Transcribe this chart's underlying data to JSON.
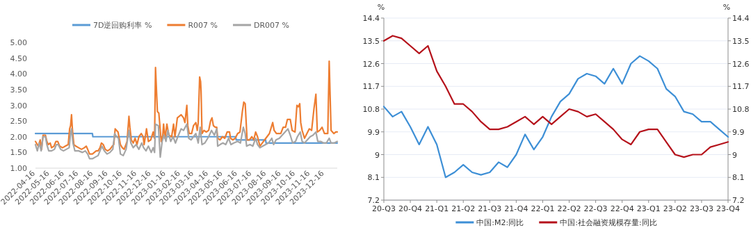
{
  "chart_data": [
    {
      "type": "line",
      "legend": "top",
      "xlim": [
        "2022-04-16",
        "2024-01-12"
      ],
      "xticks": [
        "2022-04-16",
        "2022-05-16",
        "2022-06-16",
        "2022-07-16",
        "2022-08-16",
        "2022-09-16",
        "2022-10-16",
        "2022-11-16",
        "2022-12-16",
        "2023-01-16",
        "2023-02-16",
        "2023-03-16",
        "2023-04-16",
        "2023-05-16",
        "2023-06-16",
        "2023-07-16",
        "2023-08-16",
        "2023-09-16",
        "2023-10-16",
        "2023-11-16",
        "2023-12-16"
      ],
      "ylim": [
        1,
        5
      ],
      "yticks": [
        {
          "value": 1,
          "label": "1.00"
        },
        {
          "value": 1.5,
          "label": "1.50"
        },
        {
          "value": 2,
          "label": "2.00"
        },
        {
          "value": 2.5,
          "label": "2.50"
        },
        {
          "value": 3,
          "label": "3.00"
        },
        {
          "value": 3.5,
          "label": "3.50"
        },
        {
          "value": 4,
          "label": "4.00"
        },
        {
          "value": 4.5,
          "label": "4.50"
        },
        {
          "value": 5,
          "label": "5.00"
        }
      ],
      "series": [
        {
          "name": "7D逆回购利率 %",
          "color": "#5b9bd5",
          "x": [
            "2022-04-16",
            "2022-08-14",
            "2022-08-15",
            "2023-06-12",
            "2023-06-13",
            "2023-08-14",
            "2023-08-15",
            "2024-01-12"
          ],
          "values": [
            2.1,
            2.1,
            2.0,
            2.0,
            1.9,
            1.9,
            1.8,
            1.8
          ]
        },
        {
          "name": "R007 %",
          "color": "#ed7d31",
          "x": [
            "2022-04-16",
            "2022-04-22",
            "2022-04-26",
            "2022-04-29",
            "2022-05-02",
            "2022-05-07",
            "2022-05-10",
            "2022-05-13",
            "2022-05-17",
            "2022-05-20",
            "2022-05-25",
            "2022-05-29",
            "2022-06-02",
            "2022-06-06",
            "2022-06-12",
            "2022-06-18",
            "2022-06-24",
            "2022-06-27",
            "2022-06-29",
            "2022-07-01",
            "2022-07-03",
            "2022-07-06",
            "2022-07-10",
            "2022-07-16",
            "2022-07-22",
            "2022-07-28",
            "2022-08-01",
            "2022-08-04",
            "2022-08-08",
            "2022-08-14",
            "2022-08-18",
            "2022-08-22",
            "2022-08-26",
            "2022-08-30",
            "2022-09-02",
            "2022-09-06",
            "2022-09-10",
            "2022-09-15",
            "2022-09-20",
            "2022-09-25",
            "2022-09-28",
            "2022-10-01",
            "2022-10-04",
            "2022-10-07",
            "2022-10-12",
            "2022-10-16",
            "2022-10-20",
            "2022-10-26",
            "2022-10-30",
            "2022-11-01",
            "2022-11-04",
            "2022-11-08",
            "2022-11-12",
            "2022-11-16",
            "2022-11-20",
            "2022-11-25",
            "2022-11-29",
            "2022-12-01",
            "2022-12-06",
            "2022-12-10",
            "2022-12-15",
            "2022-12-20",
            "2022-12-23",
            "2022-12-25",
            "2022-12-29",
            "2023-01-01",
            "2023-01-06",
            "2023-01-09",
            "2023-01-11",
            "2023-01-14",
            "2023-01-18",
            "2023-01-22",
            "2023-01-28",
            "2023-02-01",
            "2023-02-04",
            "2023-02-09",
            "2023-02-17",
            "2023-02-22",
            "2023-02-25",
            "2023-03-01",
            "2023-03-03",
            "2023-03-06",
            "2023-03-11",
            "2023-03-15",
            "2023-03-20",
            "2023-03-23",
            "2023-03-25",
            "2023-03-28",
            "2023-03-30",
            "2023-03-31",
            "2023-04-02",
            "2023-04-06",
            "2023-04-11",
            "2023-04-16",
            "2023-04-20",
            "2023-04-23",
            "2023-04-26",
            "2023-04-30",
            "2023-05-03",
            "2023-05-05",
            "2023-05-10",
            "2023-05-15",
            "2023-05-20",
            "2023-05-25",
            "2023-05-30",
            "2023-06-01",
            "2023-06-06",
            "2023-06-11",
            "2023-06-16",
            "2023-06-21",
            "2023-06-26",
            "2023-06-29",
            "2023-07-02",
            "2023-07-06",
            "2023-07-11",
            "2023-07-16",
            "2023-07-20",
            "2023-07-24",
            "2023-07-28",
            "2023-08-02",
            "2023-08-07",
            "2023-08-12",
            "2023-08-17",
            "2023-08-22",
            "2023-08-29",
            "2023-09-01",
            "2023-09-06",
            "2023-09-10",
            "2023-09-15",
            "2023-09-20",
            "2023-09-25",
            "2023-09-29",
            "2023-10-05",
            "2023-10-09",
            "2023-10-15",
            "2023-10-19",
            "2023-10-22",
            "2023-10-25",
            "2023-10-27",
            "2023-10-30",
            "2023-11-04",
            "2023-11-09",
            "2023-11-14",
            "2023-11-19",
            "2023-11-24",
            "2023-11-28",
            "2023-12-01",
            "2023-12-06",
            "2023-12-11",
            "2023-12-16",
            "2023-12-23",
            "2023-12-26",
            "2023-12-30",
            "2024-01-05",
            "2024-01-09",
            "2024-01-12"
          ],
          "values": [
            1.85,
            1.7,
            1.9,
            1.6,
            2.05,
            2.05,
            1.85,
            1.75,
            1.8,
            1.65,
            1.7,
            1.85,
            1.85,
            1.7,
            1.65,
            1.7,
            1.75,
            2.25,
            2.35,
            2.7,
            2.2,
            1.75,
            1.7,
            1.65,
            1.6,
            1.65,
            1.7,
            1.6,
            1.45,
            1.45,
            1.5,
            1.55,
            1.55,
            1.65,
            1.8,
            1.75,
            1.6,
            1.55,
            1.6,
            1.7,
            1.75,
            2.25,
            2.2,
            2.15,
            1.75,
            1.65,
            1.6,
            1.85,
            2.65,
            2.3,
            1.9,
            1.8,
            1.95,
            1.75,
            2.0,
            2.1,
            2.0,
            1.75,
            2.25,
            1.85,
            1.9,
            2.15,
            1.95,
            4.2,
            2.8,
            2.75,
            1.85,
            2.0,
            2.4,
            1.95,
            2.4,
            2.05,
            2.0,
            2.4,
            2.0,
            2.6,
            2.7,
            2.6,
            2.45,
            3.0,
            2.35,
            2.1,
            2.1,
            2.35,
            2.45,
            2.2,
            2.45,
            3.9,
            3.75,
            3.45,
            2.1,
            2.2,
            2.15,
            2.2,
            2.5,
            2.6,
            2.35,
            2.3,
            2.3,
            1.95,
            1.9,
            2.0,
            1.95,
            2.15,
            2.15,
            1.95,
            1.9,
            1.95,
            2.1,
            2.15,
            2.8,
            3.1,
            3.05,
            1.9,
            1.9,
            2.0,
            1.9,
            2.15,
            2.0,
            1.7,
            1.8,
            1.9,
            2.0,
            2.1,
            2.45,
            2.2,
            2.1,
            2.1,
            2.1,
            2.3,
            2.3,
            2.55,
            2.55,
            2.2,
            2.15,
            3.0,
            2.95,
            3.05,
            2.45,
            2.2,
            1.95,
            2.1,
            2.25,
            2.2,
            2.9,
            3.35,
            2.15,
            2.2,
            2.3,
            2.1,
            2.1,
            4.4,
            2.2,
            2.1,
            2.15,
            2.15
          ]
        },
        {
          "name": "DR007 %",
          "color": "#a5a5a5",
          "x": [
            "2022-04-16",
            "2022-04-20",
            "2022-04-24",
            "2022-04-28",
            "2022-05-02",
            "2022-05-07",
            "2022-05-10",
            "2022-05-14",
            "2022-05-20",
            "2022-05-26",
            "2022-05-30",
            "2022-06-03",
            "2022-06-08",
            "2022-06-14",
            "2022-06-20",
            "2022-06-26",
            "2022-06-29",
            "2022-07-01",
            "2022-07-04",
            "2022-07-08",
            "2022-07-16",
            "2022-07-24",
            "2022-07-30",
            "2022-08-04",
            "2022-08-08",
            "2022-08-14",
            "2022-08-20",
            "2022-08-26",
            "2022-08-30",
            "2022-09-03",
            "2022-09-08",
            "2022-09-14",
            "2022-09-20",
            "2022-09-26",
            "2022-09-30",
            "2022-10-04",
            "2022-10-08",
            "2022-10-12",
            "2022-10-18",
            "2022-10-24",
            "2022-10-30",
            "2022-11-03",
            "2022-11-08",
            "2022-11-14",
            "2022-11-20",
            "2022-11-26",
            "2022-11-30",
            "2022-12-05",
            "2022-12-10",
            "2022-12-16",
            "2022-12-20",
            "2022-12-23",
            "2022-12-25",
            "2022-12-31",
            "2023-01-04",
            "2023-01-08",
            "2023-01-12",
            "2023-01-16",
            "2023-01-20",
            "2023-01-26",
            "2023-01-31",
            "2023-02-05",
            "2023-02-10",
            "2023-02-17",
            "2023-02-22",
            "2023-03-01",
            "2023-03-05",
            "2023-03-10",
            "2023-03-15",
            "2023-03-20",
            "2023-03-25",
            "2023-03-29",
            "2023-04-02",
            "2023-04-08",
            "2023-04-16",
            "2023-04-22",
            "2023-04-28",
            "2023-05-03",
            "2023-05-05",
            "2023-05-10",
            "2023-05-16",
            "2023-05-22",
            "2023-05-28",
            "2023-06-02",
            "2023-06-08",
            "2023-06-16",
            "2023-06-22",
            "2023-06-28",
            "2023-07-02",
            "2023-07-05",
            "2023-07-12",
            "2023-07-18",
            "2023-07-24",
            "2023-07-28",
            "2023-08-02",
            "2023-08-08",
            "2023-08-14",
            "2023-08-20",
            "2023-08-27",
            "2023-08-31",
            "2023-09-05",
            "2023-09-12",
            "2023-09-18",
            "2023-09-24",
            "2023-09-30",
            "2023-10-05",
            "2023-10-10",
            "2023-10-16",
            "2023-10-20",
            "2023-10-26",
            "2023-10-30",
            "2023-11-04",
            "2023-11-10",
            "2023-11-16",
            "2023-11-22",
            "2023-11-28",
            "2023-12-02",
            "2023-12-08",
            "2023-12-14",
            "2023-12-20",
            "2023-12-26",
            "2023-12-30",
            "2024-01-06",
            "2024-01-12"
          ],
          "values": [
            1.75,
            1.55,
            1.8,
            1.55,
            2.0,
            2.0,
            1.75,
            1.55,
            1.55,
            1.6,
            1.75,
            1.75,
            1.6,
            1.55,
            1.6,
            1.65,
            2.1,
            2.25,
            1.8,
            1.55,
            1.55,
            1.5,
            1.55,
            1.45,
            1.3,
            1.3,
            1.35,
            1.4,
            1.55,
            1.7,
            1.55,
            1.45,
            1.5,
            1.6,
            2.1,
            2.0,
            1.95,
            1.45,
            1.4,
            1.6,
            2.2,
            1.8,
            1.65,
            1.75,
            1.6,
            1.8,
            1.65,
            1.55,
            1.7,
            1.5,
            1.65,
            1.5,
            2.4,
            2.35,
            1.35,
            1.85,
            2.05,
            1.85,
            2.2,
            1.85,
            2.0,
            1.8,
            2.0,
            2.25,
            2.2,
            2.4,
            1.95,
            1.9,
            2.0,
            2.1,
            1.8,
            2.3,
            1.75,
            1.8,
            2.0,
            2.2,
            2.05,
            2.25,
            1.7,
            1.75,
            1.8,
            1.75,
            1.95,
            1.75,
            1.8,
            1.85,
            1.8,
            2.3,
            2.1,
            1.7,
            1.75,
            1.7,
            1.95,
            1.75,
            1.65,
            1.7,
            1.75,
            1.8,
            1.95,
            1.75,
            1.9,
            1.95,
            2.05,
            2.15,
            2.25,
            2.05,
            1.8,
            1.85,
            2.0,
            2.15,
            1.85,
            1.8,
            1.9,
            2.0,
            2.05,
            2.15,
            1.85,
            1.85,
            1.8,
            1.8,
            1.95,
            1.8,
            1.8,
            1.85
          ]
        }
      ]
    },
    {
      "type": "line",
      "legend": "bottom",
      "grid": "y",
      "ylabel": "%",
      "y2label": "%",
      "categories": [
        "20-Q3",
        null,
        null,
        "20-Q4",
        null,
        null,
        "21-Q1",
        null,
        null,
        "21-Q2",
        null,
        null,
        "21-Q3",
        null,
        null,
        "21-Q4",
        null,
        null,
        "22-Q1",
        null,
        null,
        "22-Q2",
        null,
        null,
        "22-Q3",
        null,
        null,
        "22-Q4",
        null,
        null,
        "23-Q1",
        null,
        null,
        "23-Q2",
        null,
        null,
        "23-Q3",
        null,
        null,
        "23-Q4"
      ],
      "ylim": [
        7.2,
        14.4
      ],
      "yticks": [
        7.2,
        8.1,
        9,
        9.9,
        10.8,
        11.7,
        12.6,
        13.5,
        14.4
      ],
      "y2lim": [
        7.2,
        14.4
      ],
      "y2ticks": [
        7.2,
        8.1,
        9,
        9.9,
        10.8,
        11.7,
        12.6,
        13.5,
        14.4
      ],
      "series": [
        {
          "name": "中国:M2:同比",
          "color": "#3d8fd6",
          "values": [
            10.9,
            10.5,
            10.7,
            10.1,
            9.4,
            10.1,
            9.4,
            8.1,
            8.3,
            8.6,
            8.3,
            8.2,
            8.3,
            8.7,
            8.5,
            9.0,
            9.8,
            9.2,
            9.7,
            10.5,
            11.1,
            11.4,
            12.0,
            12.2,
            12.1,
            11.8,
            12.4,
            11.8,
            12.6,
            12.9,
            12.7,
            12.4,
            11.6,
            11.3,
            10.7,
            10.6,
            10.3,
            10.3,
            10.0,
            9.7
          ]
        },
        {
          "name": "中国:社会融资规模存量:同比",
          "color": "#b5121b",
          "values": [
            13.5,
            13.7,
            13.6,
            13.3,
            13.0,
            13.3,
            12.3,
            11.7,
            11.0,
            11.0,
            10.7,
            10.3,
            10.0,
            10.0,
            10.1,
            10.3,
            10.5,
            10.2,
            10.5,
            10.2,
            10.5,
            10.8,
            10.7,
            10.5,
            10.6,
            10.3,
            10.0,
            9.6,
            9.4,
            9.9,
            10.0,
            10.0,
            9.5,
            9.0,
            8.9,
            9.0,
            9.0,
            9.3,
            9.4,
            9.5
          ]
        }
      ]
    }
  ]
}
